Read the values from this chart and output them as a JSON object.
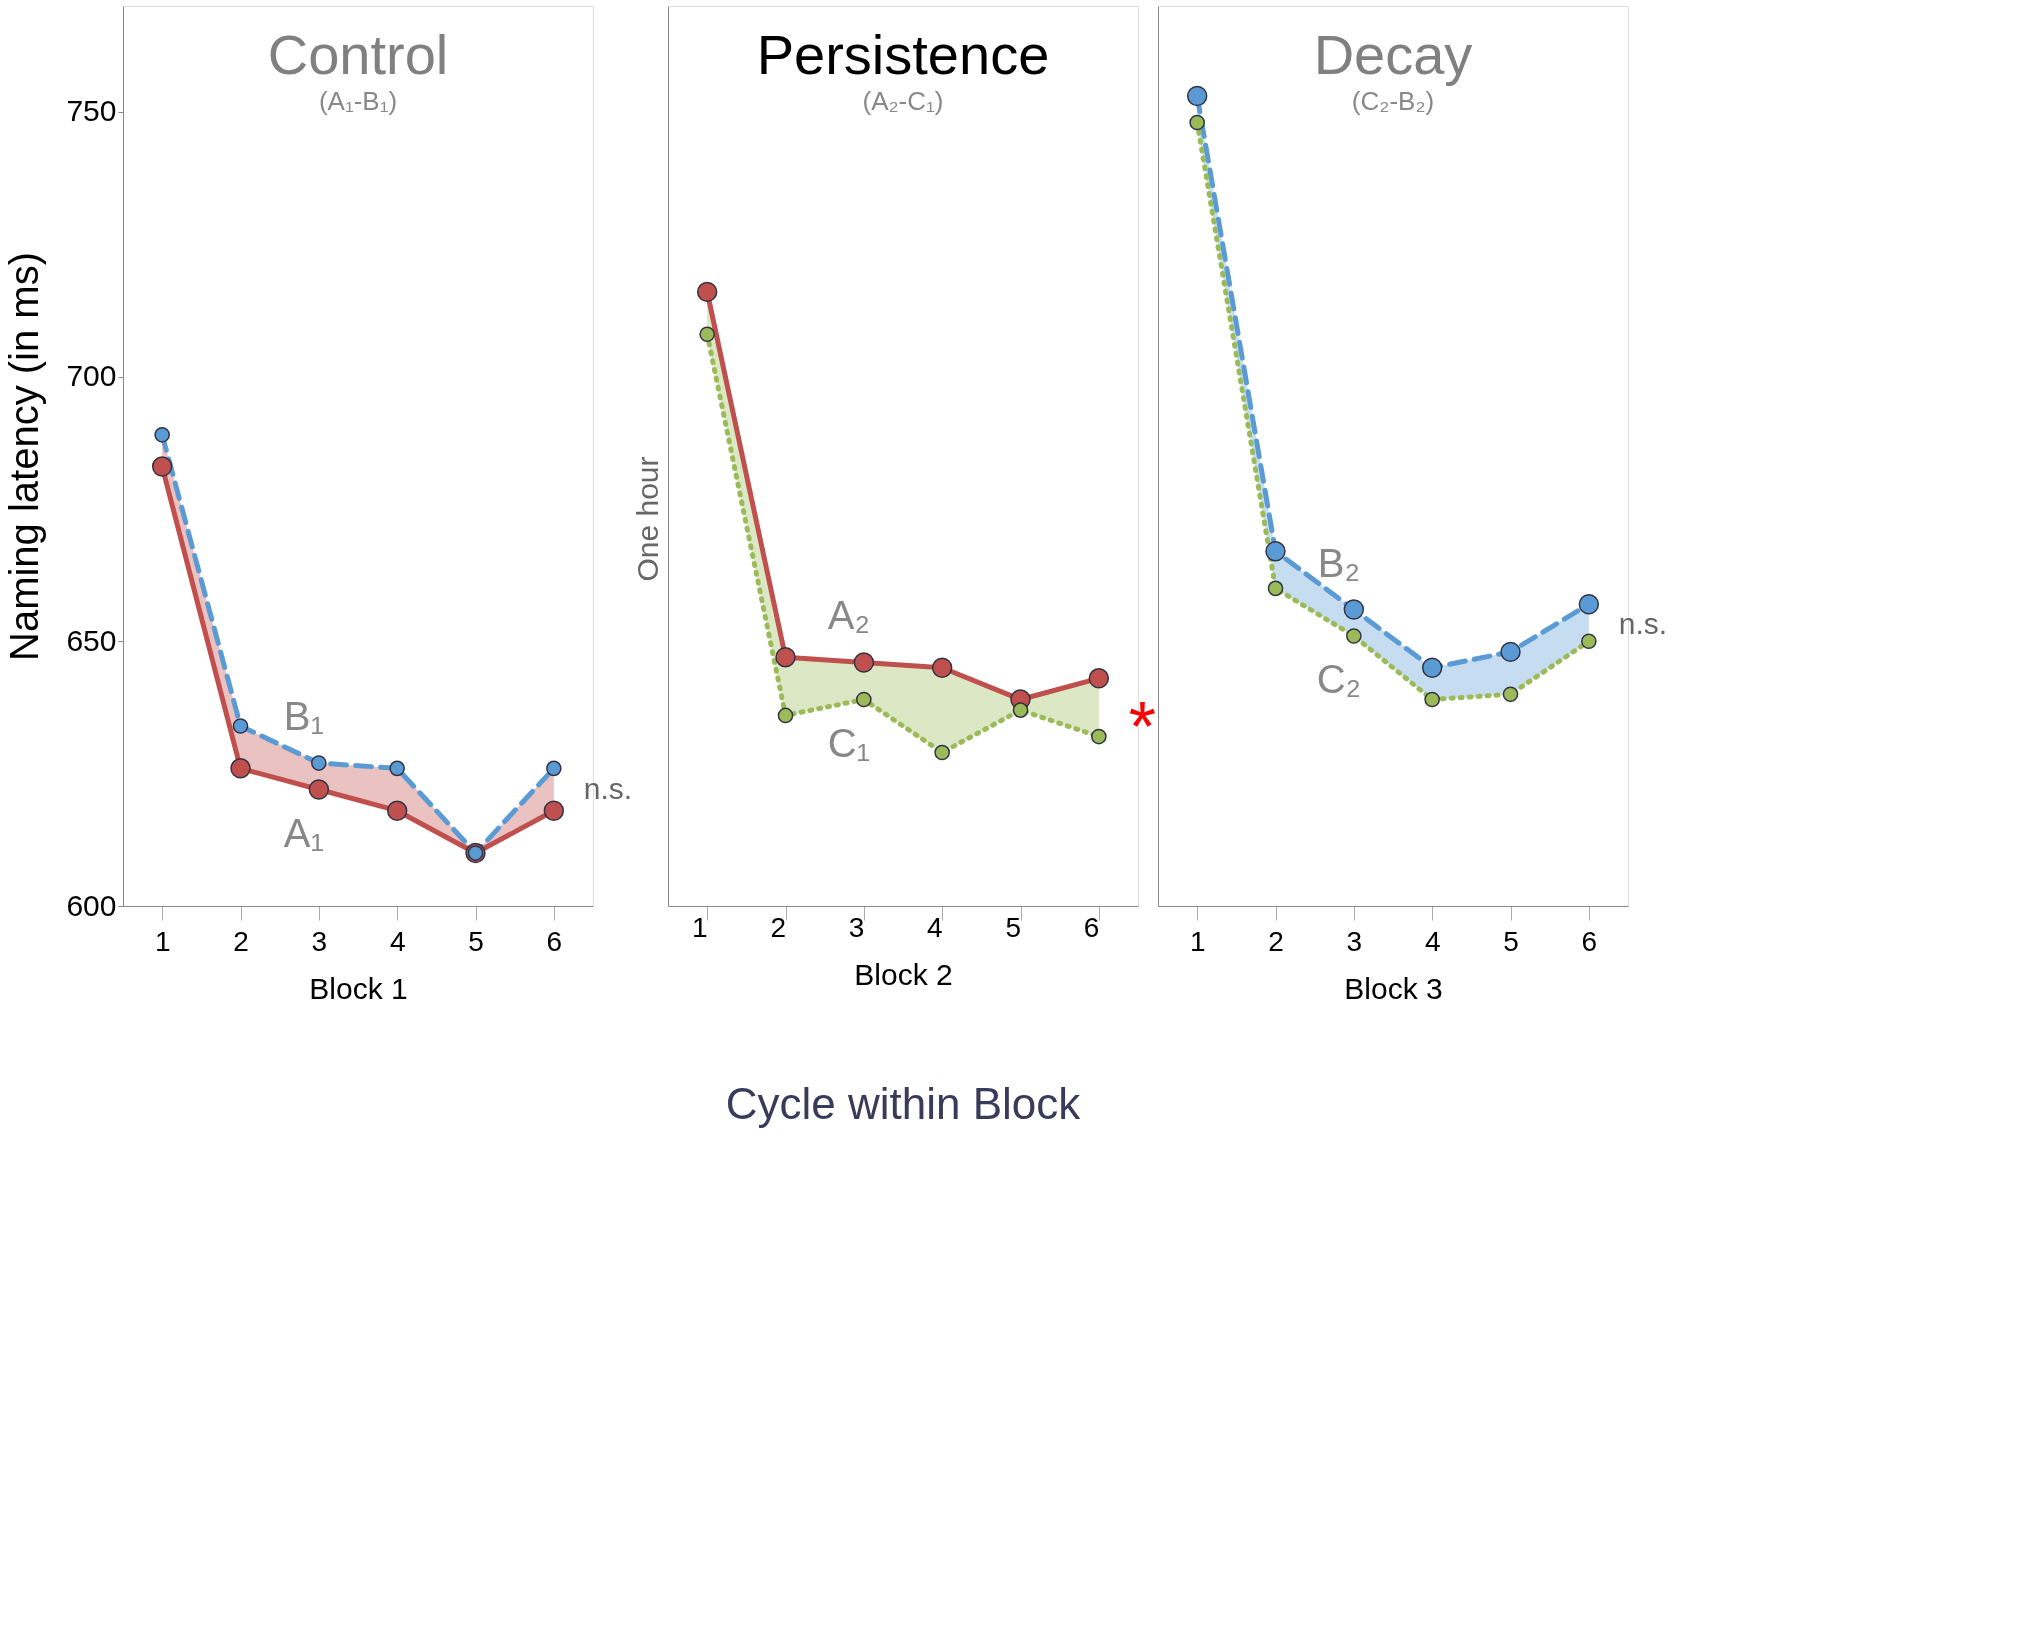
{
  "chart_data": [
    {
      "type": "line",
      "title": "Control",
      "subtitle": "(A₁-B₁)",
      "xlabel": "Block 1",
      "ylabel": "Naming latency (in ms)",
      "categories": [
        "1",
        "2",
        "3",
        "4",
        "5",
        "6"
      ],
      "ylim": [
        600,
        770
      ],
      "yticks": [
        600,
        650,
        700,
        750
      ],
      "grid": false,
      "legend": false,
      "marker": "circle",
      "series": [
        {
          "name": "A₁",
          "color": "#c0504d",
          "line_style": "solid",
          "values": [
            683,
            626,
            622,
            618,
            610,
            618
          ],
          "lower": [
            683,
            626,
            622,
            618,
            610,
            618
          ],
          "upper": [
            689,
            634,
            627,
            626,
            610,
            626
          ]
        },
        {
          "name": "B₁",
          "color": "#5b9bd5",
          "line_style": "dashed",
          "values": [
            689,
            634,
            627,
            626,
            610,
            626
          ]
        }
      ],
      "annotations": [
        {
          "text": "n.s.",
          "x": "6",
          "y": 622
        }
      ]
    },
    {
      "type": "line",
      "title": "Persistence",
      "subtitle": "(A₂-C₁)",
      "xlabel": "Block 2",
      "categories": [
        "1",
        "2",
        "3",
        "4",
        "5",
        "6"
      ],
      "ylim": [
        600,
        770
      ],
      "yticks": [
        600,
        650,
        700,
        750
      ],
      "tick_labels": "x",
      "grid": false,
      "legend": false,
      "marker": "circle",
      "series": [
        {
          "name": "A₂",
          "color": "#c0504d",
          "line_style": "solid",
          "values": [
            716,
            647,
            646,
            645,
            639,
            643
          ]
        },
        {
          "name": "C₁",
          "color": "#9bbb59",
          "line_style": "dotted",
          "values": [
            708,
            636,
            639,
            629,
            637,
            632
          ],
          "lower": [
            708,
            636,
            639,
            629,
            637,
            632
          ],
          "upper": [
            716,
            647,
            646,
            645,
            639,
            643
          ]
        }
      ],
      "annotations": [
        "One hour",
        "Cycle within Block",
        {
          "text": "*",
          "x": "6",
          "y": 637
        }
      ]
    },
    {
      "type": "line",
      "title": "Decay",
      "subtitle": "(C₂-B₂)",
      "xlabel": "Block 3",
      "categories": [
        "1",
        "2",
        "3",
        "4",
        "5",
        "6"
      ],
      "ylim": [
        600,
        770
      ],
      "yticks": [
        600,
        650,
        700,
        750
      ],
      "tick_labels": "x",
      "grid": false,
      "legend": false,
      "marker": "circle",
      "series": [
        {
          "name": "B₂",
          "color": "#5b9bd5",
          "line_style": "dashed",
          "values": [
            753,
            667,
            656,
            645,
            648,
            657
          ],
          "lower": [
            748,
            660,
            651,
            639,
            640,
            650
          ],
          "upper": [
            753,
            667,
            656,
            645,
            648,
            657
          ]
        },
        {
          "name": "C₂",
          "color": "#9bbb59",
          "line_style": "dotted",
          "values": [
            748,
            660,
            651,
            639,
            640,
            650
          ]
        }
      ],
      "annotations": [
        {
          "text": "n.s.",
          "x": "6",
          "y": 653
        }
      ]
    }
  ]
}
